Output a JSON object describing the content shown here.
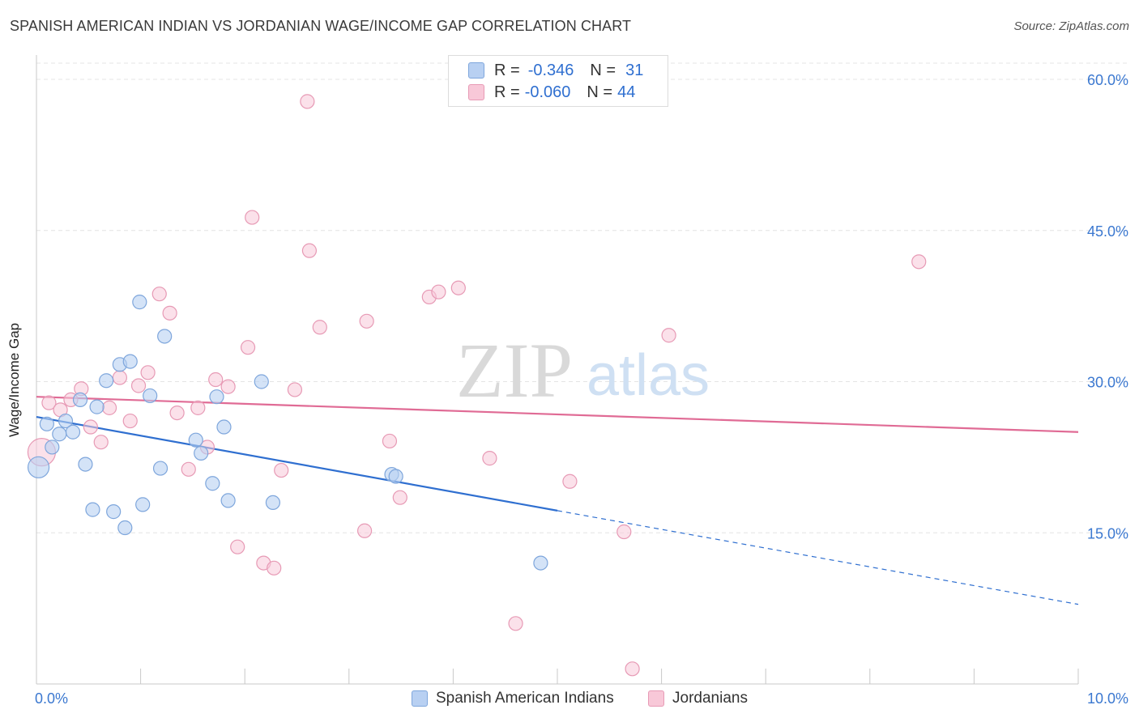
{
  "title": "SPANISH AMERICAN INDIAN VS JORDANIAN WAGE/INCOME GAP CORRELATION CHART",
  "source": "Source: ZipAtlas.com",
  "watermark": {
    "zip": "ZIP",
    "atlas": "atlas"
  },
  "legend": {
    "series1": {
      "r_label": "R = ",
      "r_value": "-0.346",
      "n_label": "N = ",
      "n_value": "31"
    },
    "series2": {
      "r_label": "R = ",
      "r_value": "-0.060",
      "n_label": "N = ",
      "n_value": "44"
    }
  },
  "bottom_legend": {
    "series1": "Spanish American Indians",
    "series2": "Jordanians"
  },
  "colors": {
    "blue_fill": "#b8d0f2",
    "blue_stroke": "#7ea6dc",
    "blue_line": "#2f6fd0",
    "pink_fill": "#f8c8d8",
    "pink_stroke": "#e79ab5",
    "pink_line": "#e06b95",
    "tick_label": "#3b78d0",
    "grid": "#e4e4e4"
  },
  "chart_data": {
    "type": "scatter",
    "title": "SPANISH AMERICAN INDIAN VS JORDANIAN WAGE/INCOME GAP CORRELATION CHART",
    "xlabel": "",
    "ylabel": "Wage/Income Gap",
    "xlim": [
      0,
      10
    ],
    "ylim": [
      0,
      60
    ],
    "x_tick_labels": {
      "min": "0.0%",
      "max": "10.0%"
    },
    "y_ticks": [
      15,
      30,
      45,
      60
    ],
    "y_tick_labels": [
      "15.0%",
      "30.0%",
      "45.0%",
      "60.0%"
    ],
    "series": [
      {
        "name": "Spanish American Indians",
        "r": -0.346,
        "n": 31,
        "points": [
          [
            0.02,
            21.5
          ],
          [
            0.1,
            25.8
          ],
          [
            0.15,
            23.5
          ],
          [
            0.22,
            24.8
          ],
          [
            0.28,
            26.1
          ],
          [
            0.35,
            25.0
          ],
          [
            0.42,
            28.2
          ],
          [
            0.47,
            21.8
          ],
          [
            0.54,
            17.3
          ],
          [
            0.58,
            27.5
          ],
          [
            0.67,
            30.1
          ],
          [
            0.74,
            17.1
          ],
          [
            0.8,
            31.7
          ],
          [
            0.85,
            15.5
          ],
          [
            0.9,
            32.0
          ],
          [
            0.99,
            37.9
          ],
          [
            1.02,
            17.8
          ],
          [
            1.09,
            28.6
          ],
          [
            1.19,
            21.4
          ],
          [
            1.23,
            34.5
          ],
          [
            1.53,
            24.2
          ],
          [
            1.58,
            22.9
          ],
          [
            1.69,
            19.9
          ],
          [
            1.73,
            28.5
          ],
          [
            1.8,
            25.5
          ],
          [
            1.84,
            18.2
          ],
          [
            2.16,
            30.0
          ],
          [
            2.27,
            18.0
          ],
          [
            3.41,
            20.8
          ],
          [
            3.45,
            20.6
          ],
          [
            4.84,
            12.0
          ]
        ],
        "trend": {
          "x0": 0.0,
          "y0": 26.5,
          "x1": 5.0,
          "y1": 17.2,
          "dashed_to_x": 10.0,
          "dashed_to_y": 7.9
        }
      },
      {
        "name": "Jordanians",
        "r": -0.06,
        "n": 44,
        "points": [
          [
            0.05,
            23.0
          ],
          [
            0.12,
            27.9
          ],
          [
            0.23,
            27.2
          ],
          [
            0.33,
            28.2
          ],
          [
            0.43,
            29.3
          ],
          [
            0.52,
            25.5
          ],
          [
            0.62,
            24.0
          ],
          [
            0.7,
            27.4
          ],
          [
            0.8,
            30.4
          ],
          [
            0.9,
            26.1
          ],
          [
            0.98,
            29.6
          ],
          [
            1.07,
            30.9
          ],
          [
            1.18,
            38.7
          ],
          [
            1.28,
            36.8
          ],
          [
            1.35,
            26.9
          ],
          [
            1.46,
            21.3
          ],
          [
            1.55,
            27.4
          ],
          [
            1.64,
            23.5
          ],
          [
            1.72,
            30.2
          ],
          [
            1.84,
            29.5
          ],
          [
            1.93,
            13.6
          ],
          [
            2.03,
            33.4
          ],
          [
            2.07,
            46.3
          ],
          [
            2.18,
            12.0
          ],
          [
            2.28,
            11.5
          ],
          [
            2.35,
            21.2
          ],
          [
            2.48,
            29.2
          ],
          [
            2.6,
            57.8
          ],
          [
            2.62,
            43.0
          ],
          [
            2.72,
            35.4
          ],
          [
            3.15,
            15.2
          ],
          [
            3.17,
            36.0
          ],
          [
            3.39,
            24.1
          ],
          [
            3.49,
            18.5
          ],
          [
            3.77,
            38.4
          ],
          [
            3.86,
            38.9
          ],
          [
            4.05,
            39.3
          ],
          [
            4.35,
            22.4
          ],
          [
            4.6,
            6.0
          ],
          [
            5.12,
            20.1
          ],
          [
            5.64,
            15.1
          ],
          [
            5.72,
            1.5
          ],
          [
            6.07,
            34.6
          ],
          [
            8.47,
            41.9
          ]
        ],
        "trend": {
          "x0": 0.0,
          "y0": 28.5,
          "x1": 10.0,
          "y1": 25.0
        }
      }
    ]
  }
}
